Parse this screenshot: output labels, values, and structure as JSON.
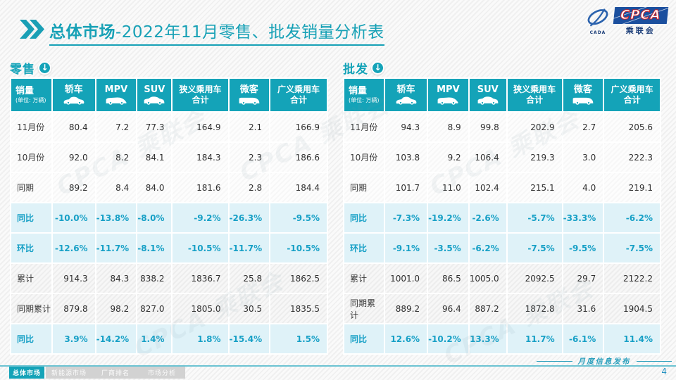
{
  "header": {
    "title_bold": "总体市场",
    "title_rest": "-2022年11月零售、批发销量分析表",
    "logo": {
      "cpca": "CPCA",
      "cpca_sub": "乘联会",
      "cada": "CADA"
    }
  },
  "table_common": {
    "col0_title": "销量",
    "col0_unit": "(单位: 万辆)",
    "columns": [
      {
        "label": "轿车",
        "icon": "sedan-icon"
      },
      {
        "label": "MPV",
        "icon": "mpv-icon"
      },
      {
        "label": "SUV",
        "icon": "suv-icon"
      },
      {
        "label": "狭义乘用车",
        "label2": "合计"
      },
      {
        "label": "微客",
        "icon": "van-icon"
      },
      {
        "label": "广义乘用车",
        "label2": "合计"
      }
    ]
  },
  "tables": [
    {
      "name": "零售",
      "rows": [
        {
          "label": "11月份",
          "style": "plain",
          "values": [
            "80.4",
            "7.2",
            "77.3",
            "164.9",
            "2.1",
            "166.9"
          ]
        },
        {
          "label": "10月份",
          "style": "plain",
          "values": [
            "92.0",
            "8.2",
            "84.1",
            "184.3",
            "2.3",
            "186.6"
          ]
        },
        {
          "label": "同期",
          "style": "plain",
          "values": [
            "89.2",
            "8.4",
            "84.0",
            "181.6",
            "2.8",
            "184.4"
          ]
        },
        {
          "label": "同比",
          "style": "pct",
          "values": [
            "-10.0%",
            "-13.8%",
            "-8.0%",
            "-9.2%",
            "-26.3%",
            "-9.5%"
          ]
        },
        {
          "label": "环比",
          "style": "pct",
          "values": [
            "-12.6%",
            "-11.7%",
            "-8.1%",
            "-10.5%",
            "-11.7%",
            "-10.5%"
          ]
        },
        {
          "label": "累计",
          "style": "gray",
          "values": [
            "914.3",
            "84.3",
            "838.2",
            "1836.7",
            "25.8",
            "1862.5"
          ]
        },
        {
          "label": "同期累计",
          "style": "gray",
          "values": [
            "879.8",
            "98.2",
            "827.0",
            "1805.0",
            "30.5",
            "1835.5"
          ]
        },
        {
          "label": "同比",
          "style": "pct",
          "values": [
            "3.9%",
            "-14.2%",
            "1.4%",
            "1.8%",
            "-15.4%",
            "1.5%"
          ]
        }
      ]
    },
    {
      "name": "批发",
      "rows": [
        {
          "label": "11月份",
          "style": "plain",
          "values": [
            "94.3",
            "8.9",
            "99.8",
            "202.9",
            "2.7",
            "205.6"
          ]
        },
        {
          "label": "10月份",
          "style": "plain",
          "values": [
            "103.8",
            "9.2",
            "106.4",
            "219.3",
            "3.0",
            "222.3"
          ]
        },
        {
          "label": "同期",
          "style": "plain",
          "values": [
            "101.7",
            "11.0",
            "102.4",
            "215.1",
            "4.0",
            "219.1"
          ]
        },
        {
          "label": "同比",
          "style": "pct",
          "values": [
            "-7.3%",
            "-19.2%",
            "-2.6%",
            "-5.7%",
            "-33.3%",
            "-6.2%"
          ]
        },
        {
          "label": "环比",
          "style": "pct",
          "values": [
            "-9.1%",
            "-3.5%",
            "-6.2%",
            "-7.5%",
            "-9.5%",
            "-7.5%"
          ]
        },
        {
          "label": "累计",
          "style": "gray",
          "values": [
            "1001.0",
            "86.5",
            "1005.0",
            "2092.5",
            "29.7",
            "2122.2"
          ]
        },
        {
          "label": "同期累计",
          "style": "gray",
          "values": [
            "889.2",
            "96.4",
            "887.2",
            "1872.8",
            "31.6",
            "1904.5"
          ]
        },
        {
          "label": "同比",
          "style": "pct",
          "values": [
            "12.6%",
            "-10.2%",
            "13.3%",
            "11.7%",
            "-6.1%",
            "11.4%"
          ]
        }
      ]
    }
  ],
  "footer": {
    "tabs": [
      {
        "label": "总体市场",
        "active": true
      },
      {
        "label": "新能源市场",
        "active": false
      },
      {
        "label": "厂商排名",
        "active": false
      },
      {
        "label": "市场分析",
        "active": false
      }
    ],
    "release_note": "月度信息发布",
    "page_number": "4"
  },
  "watermark_text": "CPCA 乘联会",
  "colors": {
    "teal": "#14a3b8",
    "pct_text": "#17a0c6",
    "pct_row_bg": "#dff2f8",
    "logo_blue": "#1b4f9e"
  }
}
